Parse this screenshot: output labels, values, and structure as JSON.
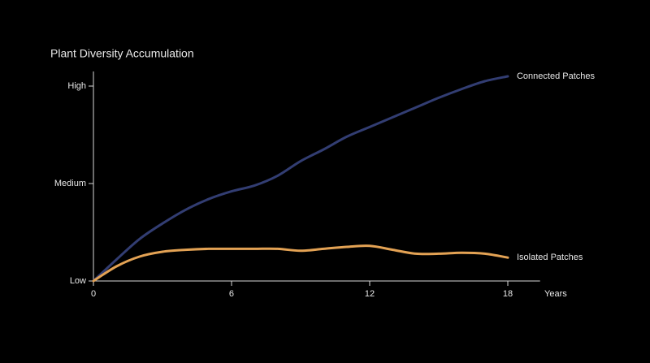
{
  "chart_data": {
    "type": "line",
    "title": "Plant Diversity Accumulation",
    "x_label": "Years",
    "x": [
      0,
      1,
      2,
      3,
      4,
      5,
      6,
      7,
      8,
      9,
      10,
      11,
      12,
      13,
      14,
      15,
      16,
      17,
      18
    ],
    "series": [
      {
        "name": "Connected Patches",
        "color": "#323d72",
        "values": [
          0,
          0.22,
          0.43,
          0.59,
          0.73,
          0.84,
          0.92,
          0.98,
          1.08,
          1.23,
          1.35,
          1.48,
          1.58,
          1.68,
          1.78,
          1.88,
          1.97,
          2.05,
          2.1
        ]
      },
      {
        "name": "Isolated Patches",
        "color": "#e3a254",
        "values": [
          0,
          0.15,
          0.25,
          0.3,
          0.32,
          0.33,
          0.33,
          0.33,
          0.33,
          0.31,
          0.33,
          0.35,
          0.36,
          0.32,
          0.28,
          0.28,
          0.29,
          0.28,
          0.24
        ]
      }
    ],
    "xlim": [
      0,
      19.4
    ],
    "ylim": [
      0,
      2.15
    ],
    "xticks": [
      0,
      6,
      12,
      18
    ],
    "yticks": [
      {
        "value": 0,
        "label": "Low"
      },
      {
        "value": 1,
        "label": "Medium"
      },
      {
        "value": 2,
        "label": "High"
      }
    ]
  }
}
